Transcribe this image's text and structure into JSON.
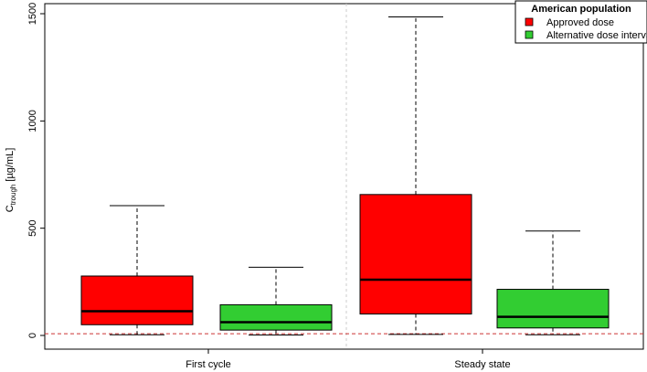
{
  "chart_data": {
    "type": "boxplot",
    "title": "",
    "xlabel": "",
    "ylabel": {
      "main": "C",
      "subscript": "trough",
      "unit": " [µg/mL]"
    },
    "ylim": [
      -40,
      1540
    ],
    "yticks": [
      0,
      500,
      1000,
      1500
    ],
    "categories": [
      "First cycle",
      "Steady state"
    ],
    "legend": {
      "title": "American population",
      "placement": "top-right",
      "entries": [
        {
          "name": "Approved dose",
          "color": "#ff0000"
        },
        {
          "name": "Alternative dose interval",
          "color": "#32cd32"
        }
      ]
    },
    "series": [
      {
        "name": "Approved dose",
        "color": "#ff0000",
        "boxes": [
          {
            "category": "First cycle",
            "min": 3,
            "q1": 50,
            "median": 113,
            "q3": 277,
            "max": 605
          },
          {
            "category": "Steady state",
            "min": 5,
            "q1": 100,
            "median": 260,
            "q3": 657,
            "max": 1485
          }
        ]
      },
      {
        "name": "Alternative dose interval",
        "color": "#32cd32",
        "boxes": [
          {
            "category": "First cycle",
            "min": 2,
            "q1": 25,
            "median": 62,
            "q3": 143,
            "max": 318
          },
          {
            "category": "Steady state",
            "min": 3,
            "q1": 35,
            "median": 87,
            "q3": 215,
            "max": 487
          }
        ]
      }
    ],
    "reference_line": {
      "y": 8,
      "color": "#cc3333",
      "style": "dashed"
    },
    "separator": {
      "between": [
        "First cycle",
        "Steady state"
      ],
      "color": "#cccccc",
      "style": "dashed"
    },
    "grid": false
  }
}
